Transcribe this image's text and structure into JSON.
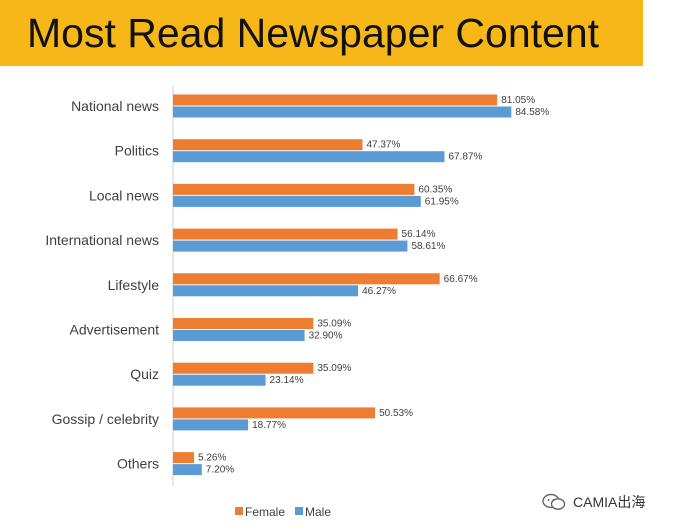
{
  "header": {
    "title": "Most Read Newspaper Content"
  },
  "watermark": {
    "text": "CAMIA出海",
    "icon": "wechat-icon"
  },
  "colors": {
    "female": "#ed7d31",
    "male": "#5b9bd5",
    "title_band": "#f7b718"
  },
  "chart_data": {
    "type": "bar",
    "orientation": "horizontal",
    "title": "",
    "xlabel": "",
    "ylabel": "",
    "xlim": [
      0,
      100
    ],
    "grid": false,
    "legend": "bottom",
    "categories": [
      "National news",
      "Politics",
      "Local news",
      "International news",
      "Lifestyle",
      "Advertisement",
      "Quiz",
      "Gossip / celebrity",
      "Others"
    ],
    "series": [
      {
        "name": "Female",
        "color": "#ed7d31",
        "values": [
          81.05,
          47.37,
          60.35,
          56.14,
          66.67,
          35.09,
          35.09,
          50.53,
          5.26
        ],
        "labels": [
          "81.05%",
          "47.37%",
          "60.35%",
          "56.14%",
          "66.67%",
          "35.09%",
          "35.09%",
          "50.53%",
          "5.26%"
        ]
      },
      {
        "name": "Male",
        "color": "#5b9bd5",
        "values": [
          84.58,
          67.87,
          61.95,
          58.61,
          46.27,
          32.9,
          23.14,
          18.77,
          7.2
        ],
        "labels": [
          "84.58%",
          "67.87%",
          "61.95%",
          "58.61%",
          "46.27%",
          "32.90%",
          "23.14%",
          "18.77%",
          "7.20%"
        ]
      }
    ]
  }
}
